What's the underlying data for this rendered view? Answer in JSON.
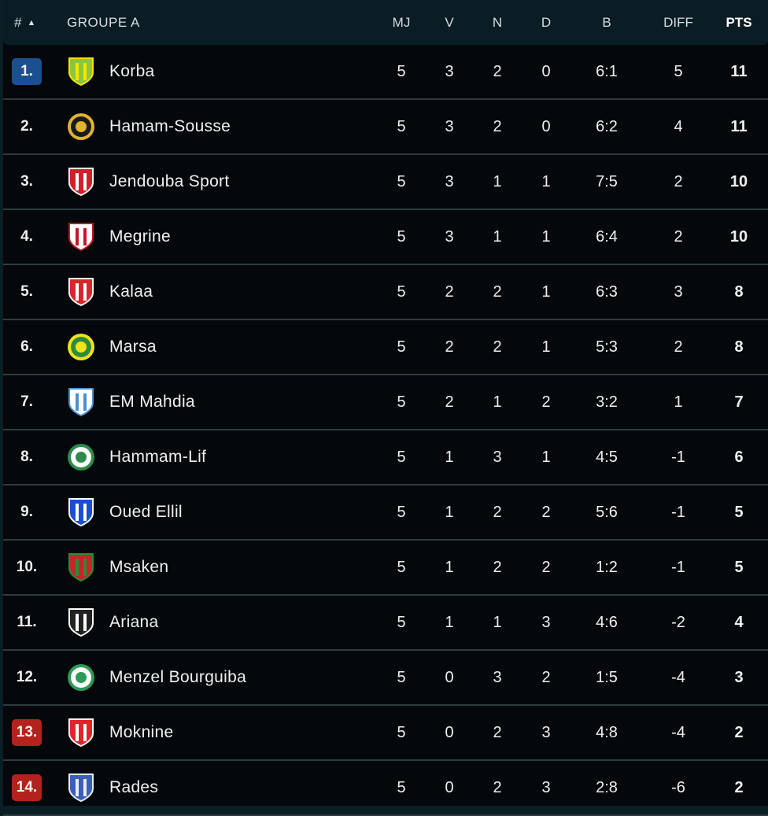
{
  "header": {
    "rank": "#",
    "sort_icon": "triangle-up",
    "group": "GROUPE A",
    "mj": "MJ",
    "v": "V",
    "n": "N",
    "d": "D",
    "b": "B",
    "diff": "DIFF",
    "pts": "PTS"
  },
  "colors": {
    "promotion": "#1c4f8f",
    "relegation": "#b3221c"
  },
  "rows": [
    {
      "rank": "1.",
      "team": "Korba",
      "mj": "5",
      "v": "3",
      "n": "2",
      "d": "0",
      "b": "6:1",
      "diff": "5",
      "pts": "11",
      "zone": "promotion",
      "logo": "#8cc63f",
      "logo2": "#f4e400",
      "shape": "shield"
    },
    {
      "rank": "2.",
      "team": "Hamam-Sousse",
      "mj": "5",
      "v": "3",
      "n": "2",
      "d": "0",
      "b": "6:2",
      "diff": "4",
      "pts": "11",
      "zone": "",
      "logo": "#1a1a1a",
      "logo2": "#e0b330",
      "shape": "circle"
    },
    {
      "rank": "3.",
      "team": "Jendouba Sport",
      "mj": "5",
      "v": "3",
      "n": "1",
      "d": "1",
      "b": "7:5",
      "diff": "2",
      "pts": "10",
      "zone": "",
      "logo": "#d0202a",
      "logo2": "#ffffff",
      "shape": "shield"
    },
    {
      "rank": "4.",
      "team": "Megrine",
      "mj": "5",
      "v": "3",
      "n": "1",
      "d": "1",
      "b": "6:4",
      "diff": "2",
      "pts": "10",
      "zone": "",
      "logo": "#ffffff",
      "logo2": "#c0182a",
      "shape": "shield"
    },
    {
      "rank": "5.",
      "team": "Kalaa",
      "mj": "5",
      "v": "2",
      "n": "2",
      "d": "1",
      "b": "6:3",
      "diff": "3",
      "pts": "8",
      "zone": "",
      "logo": "#d9262c",
      "logo2": "#ffffff",
      "shape": "shield"
    },
    {
      "rank": "6.",
      "team": "Marsa",
      "mj": "5",
      "v": "2",
      "n": "2",
      "d": "1",
      "b": "5:3",
      "diff": "2",
      "pts": "8",
      "zone": "",
      "logo": "#2e8b3a",
      "logo2": "#f2e21c",
      "shape": "circle"
    },
    {
      "rank": "7.",
      "team": "EM Mahdia",
      "mj": "5",
      "v": "2",
      "n": "1",
      "d": "2",
      "b": "3:2",
      "diff": "1",
      "pts": "7",
      "zone": "",
      "logo": "#ffffff",
      "logo2": "#4a90d0",
      "shape": "shield"
    },
    {
      "rank": "8.",
      "team": "Hammam-Lif",
      "mj": "5",
      "v": "1",
      "n": "3",
      "d": "1",
      "b": "4:5",
      "diff": "-1",
      "pts": "6",
      "zone": "",
      "logo": "#ffffff",
      "logo2": "#2e8b4a",
      "shape": "circle"
    },
    {
      "rank": "9.",
      "team": "Oued Ellil",
      "mj": "5",
      "v": "1",
      "n": "2",
      "d": "2",
      "b": "5:6",
      "diff": "-1",
      "pts": "5",
      "zone": "",
      "logo": "#1a4fd0",
      "logo2": "#ffffff",
      "shape": "shield"
    },
    {
      "rank": "10.",
      "team": "Msaken",
      "mj": "5",
      "v": "1",
      "n": "2",
      "d": "2",
      "b": "1:2",
      "diff": "-1",
      "pts": "5",
      "zone": "",
      "logo": "#c0282a",
      "logo2": "#2a8a3a",
      "shape": "shield"
    },
    {
      "rank": "11.",
      "team": "Ariana",
      "mj": "5",
      "v": "1",
      "n": "1",
      "d": "3",
      "b": "4:6",
      "diff": "-2",
      "pts": "4",
      "zone": "",
      "logo": "#222222",
      "logo2": "#ffffff",
      "shape": "shield"
    },
    {
      "rank": "12.",
      "team": "Menzel Bourguiba",
      "mj": "5",
      "v": "0",
      "n": "3",
      "d": "2",
      "b": "1:5",
      "diff": "-4",
      "pts": "3",
      "zone": "",
      "logo": "#ffffff",
      "logo2": "#2e9a5a",
      "shape": "circle"
    },
    {
      "rank": "13.",
      "team": "Moknine",
      "mj": "5",
      "v": "0",
      "n": "2",
      "d": "3",
      "b": "4:8",
      "diff": "-4",
      "pts": "2",
      "zone": "relegation",
      "logo": "#e0262a",
      "logo2": "#ffffff",
      "shape": "shield"
    },
    {
      "rank": "14.",
      "team": "Rades",
      "mj": "5",
      "v": "0",
      "n": "2",
      "d": "3",
      "b": "2:8",
      "diff": "-6",
      "pts": "2",
      "zone": "relegation",
      "logo": "#3a5fb8",
      "logo2": "#e8ecf0",
      "shape": "shield"
    }
  ]
}
